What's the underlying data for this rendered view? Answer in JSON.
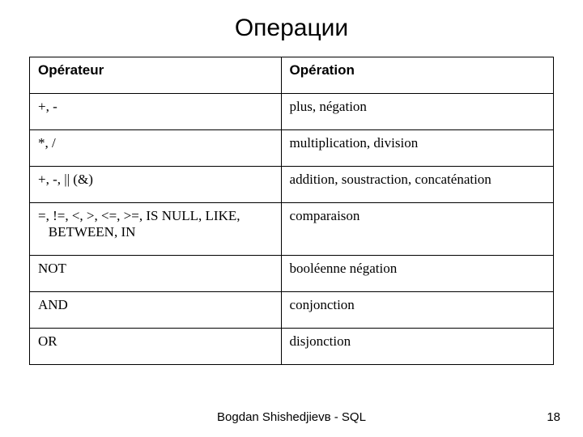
{
  "title": "Операции",
  "table": {
    "header": {
      "col1": "Opérateur",
      "col2": " Opération"
    },
    "rows": [
      {
        "op": "+, -",
        "desc": "plus, négation"
      },
      {
        "op": "*, /",
        "desc": "multiplication, division"
      },
      {
        "op": "+, -, || (&)",
        "desc": "addition, soustraction, concaténation"
      },
      {
        "op": "=, !=, <, >, <=, >=, IS NULL, LIKE,\n   BETWEEN, IN",
        "desc": "comparaison"
      },
      {
        "op": "NOT",
        "desc": "booléenne négation"
      },
      {
        "op": "AND",
        "desc": " conjonction"
      },
      {
        "op": "OR",
        "desc": " disjonction"
      }
    ]
  },
  "footer": {
    "author": "Bogdan Shishedjievв - SQL",
    "page": "18"
  },
  "colors": {
    "bg": "#ffffff",
    "text": "#000000",
    "border": "#000000"
  }
}
